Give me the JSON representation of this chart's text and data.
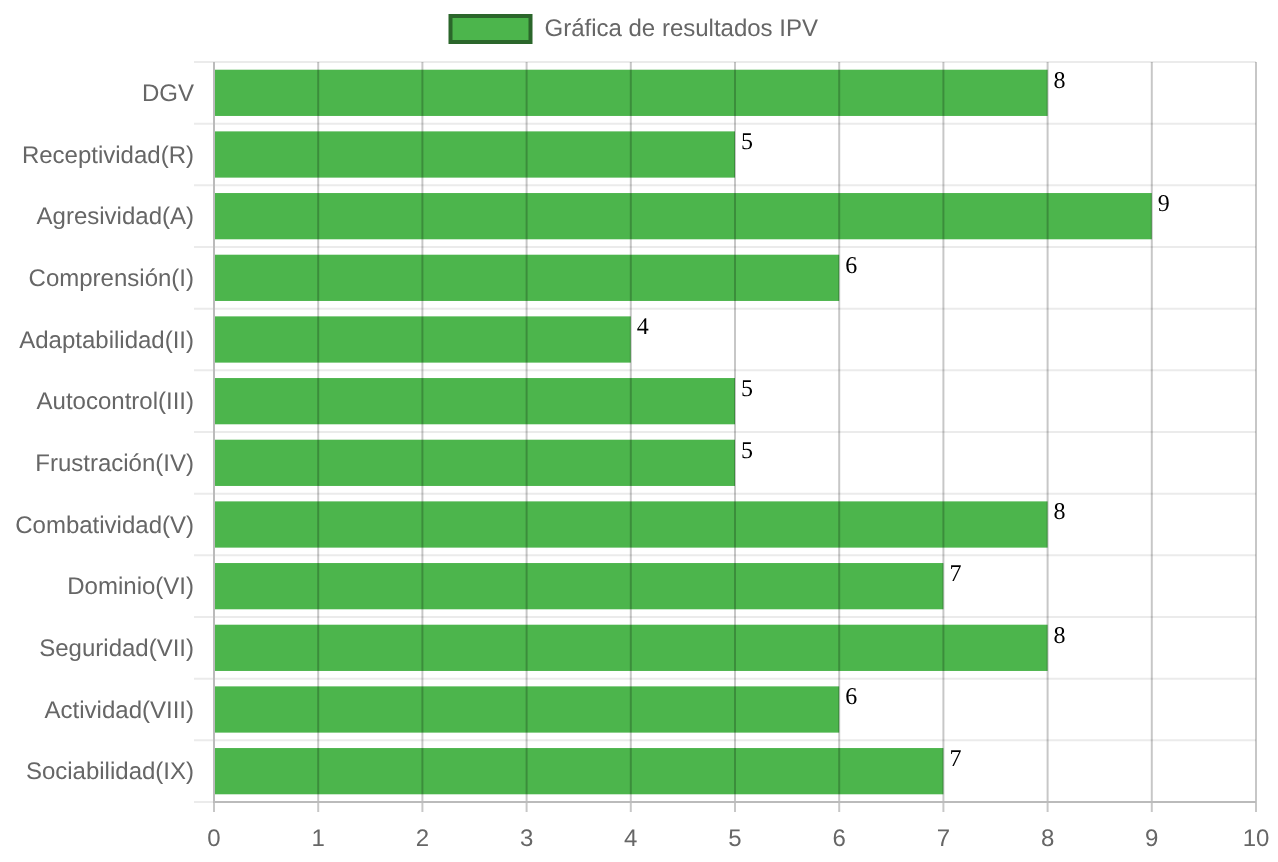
{
  "chart_data": {
    "type": "bar",
    "orientation": "horizontal",
    "categories": [
      "DGV",
      "Receptividad(R)",
      "Agresividad(A)",
      "Comprensión(I)",
      "Adaptabilidad(II)",
      "Autocontrol(III)",
      "Frustración(IV)",
      "Combatividad(V)",
      "Dominio(VI)",
      "Seguridad(VII)",
      "Actividad(VIII)",
      "Sociabilidad(IX)"
    ],
    "series": [
      {
        "name": "Gráfica de resultados IPV",
        "color": "#4cb54c",
        "values": [
          8,
          5,
          9,
          6,
          4,
          5,
          5,
          8,
          7,
          8,
          6,
          7
        ]
      }
    ],
    "xlim": [
      0,
      10
    ],
    "xticks": [
      0,
      1,
      2,
      3,
      4,
      5,
      6,
      7,
      8,
      9,
      10
    ],
    "grid": true,
    "legend": "top",
    "data_labels": true
  }
}
